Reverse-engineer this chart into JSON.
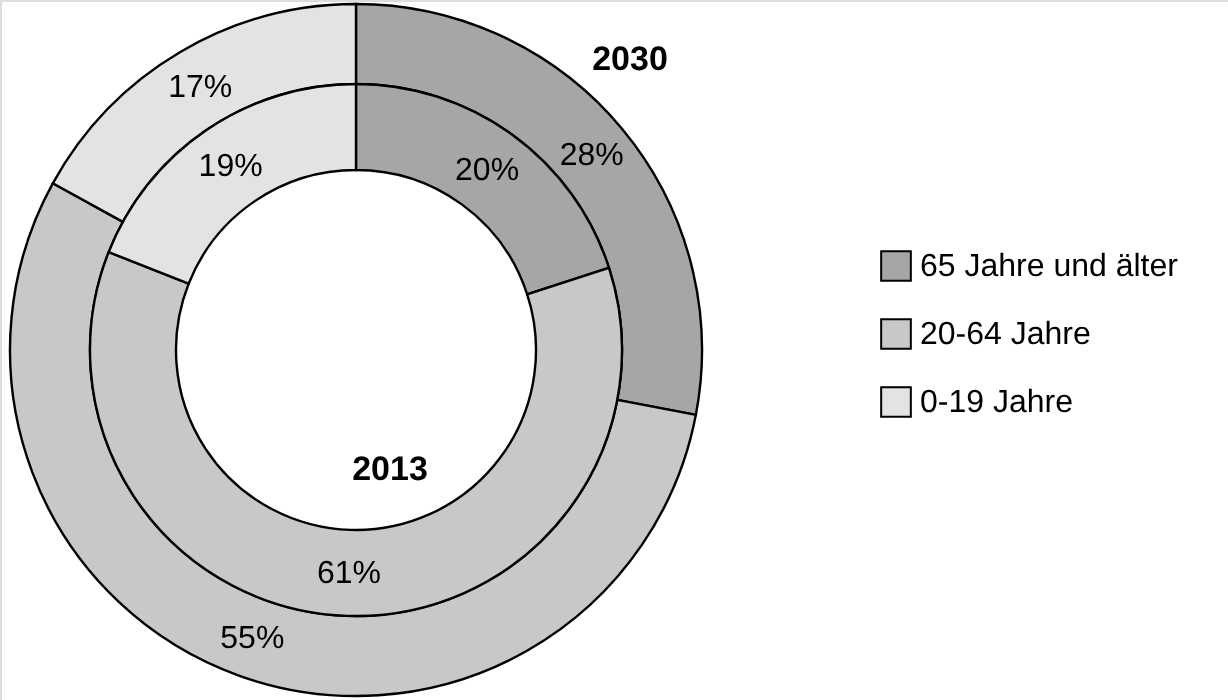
{
  "chart_data": {
    "type": "donut",
    "categories": [
      "65 Jahre und älter",
      "20-64 Jahre",
      "0-19 Jahre"
    ],
    "colors": [
      "#a6a6a6",
      "#c8c8c8",
      "#e3e3e3"
    ],
    "series": [
      {
        "name": "2030",
        "values": [
          28,
          55,
          17
        ],
        "value_labels": [
          "28%",
          "55%",
          "17%"
        ]
      },
      {
        "name": "2013",
        "values": [
          20,
          61,
          19
        ],
        "value_labels": [
          "20%",
          "61%",
          "19%"
        ]
      }
    ],
    "legend": "right"
  }
}
